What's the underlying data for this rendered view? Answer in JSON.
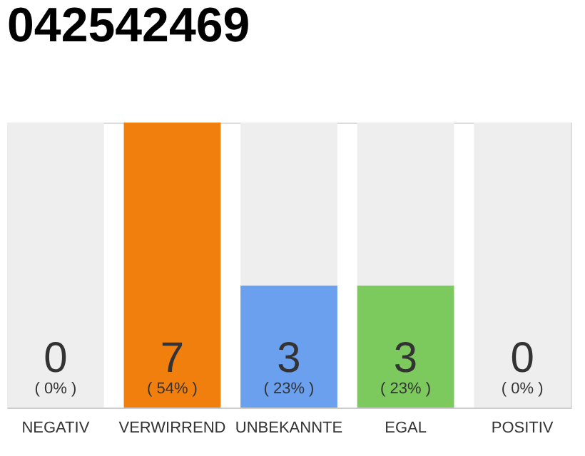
{
  "chart_data": {
    "type": "bar",
    "title": "042542469",
    "stacked": true,
    "categories": [
      "NEGATIV",
      "VERWIRREND",
      "UNBEKANNTE",
      "EGAL",
      "POSITIV"
    ],
    "series": [
      {
        "colors": [
          "#eeeeee",
          "#f07f0e",
          "#6aa0ee",
          "#7cca5e",
          "#eeeeee"
        ],
        "values": [
          0,
          7,
          3,
          3,
          0
        ],
        "value_labels": [
          null,
          "7",
          "3",
          "3",
          null
        ]
      },
      {
        "color": "#eeeeee",
        "values": [
          7,
          0,
          4,
          4,
          7
        ]
      }
    ],
    "ylim": [
      0,
      7
    ],
    "tick_labels": "x",
    "annotations": [
      "0",
      "( 0% )",
      "( 54% )",
      "( 23% )",
      "( 23% )",
      "0",
      "( 0% )"
    ]
  }
}
